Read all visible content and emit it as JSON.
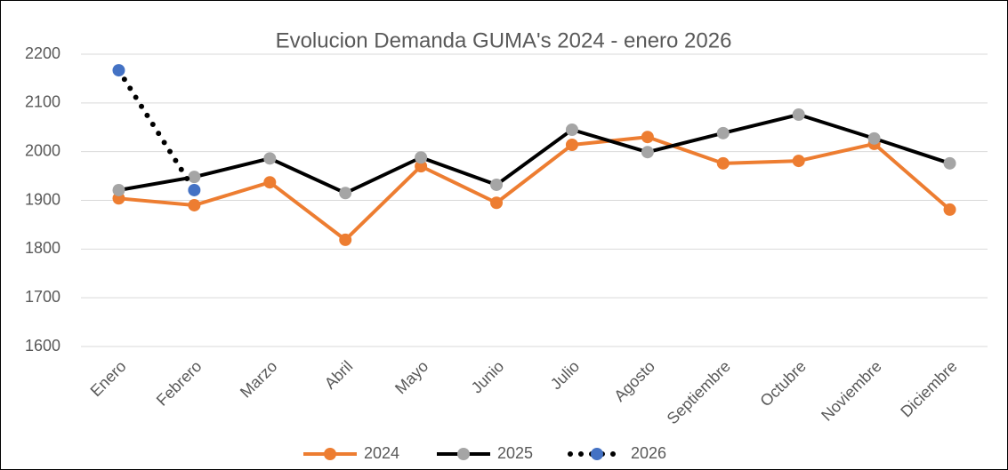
{
  "chart_data": {
    "type": "line",
    "title": "Evolucion Demanda GUMA's 2024 - enero 2026",
    "categories": [
      "Enero",
      "Febrero",
      "Marzo",
      "Abril",
      "Mayo",
      "Junio",
      "Julio",
      "Agosto",
      "Septiembre",
      "Octubre",
      "Noviembre",
      "Diciembre"
    ],
    "series": [
      {
        "name": "2024",
        "line_color": "#ed7d31",
        "marker_color": "#ed7d31",
        "line_style": "solid",
        "values": [
          1904,
          1890,
          1937,
          1819,
          1970,
          1895,
          2014,
          2030,
          1976,
          1981,
          2016,
          1881
        ]
      },
      {
        "name": "2025",
        "line_color": "#000000",
        "marker_color": "#a5a5a5",
        "line_style": "solid",
        "values": [
          1921,
          1948,
          1986,
          1915,
          1988,
          1932,
          2045,
          1999,
          2038,
          2076,
          2027,
          1976
        ]
      },
      {
        "name": "2026",
        "line_color": "#000000",
        "marker_color": "#4472c4",
        "line_style": "dotted",
        "values": [
          2167,
          1921,
          null,
          null,
          null,
          null,
          null,
          null,
          null,
          null,
          null,
          null
        ]
      }
    ],
    "ylim": [
      1600,
      2200
    ],
    "yticks": [
      1600,
      1700,
      1800,
      1900,
      2000,
      2100,
      2200
    ],
    "grid": true,
    "legend": "bottom"
  }
}
